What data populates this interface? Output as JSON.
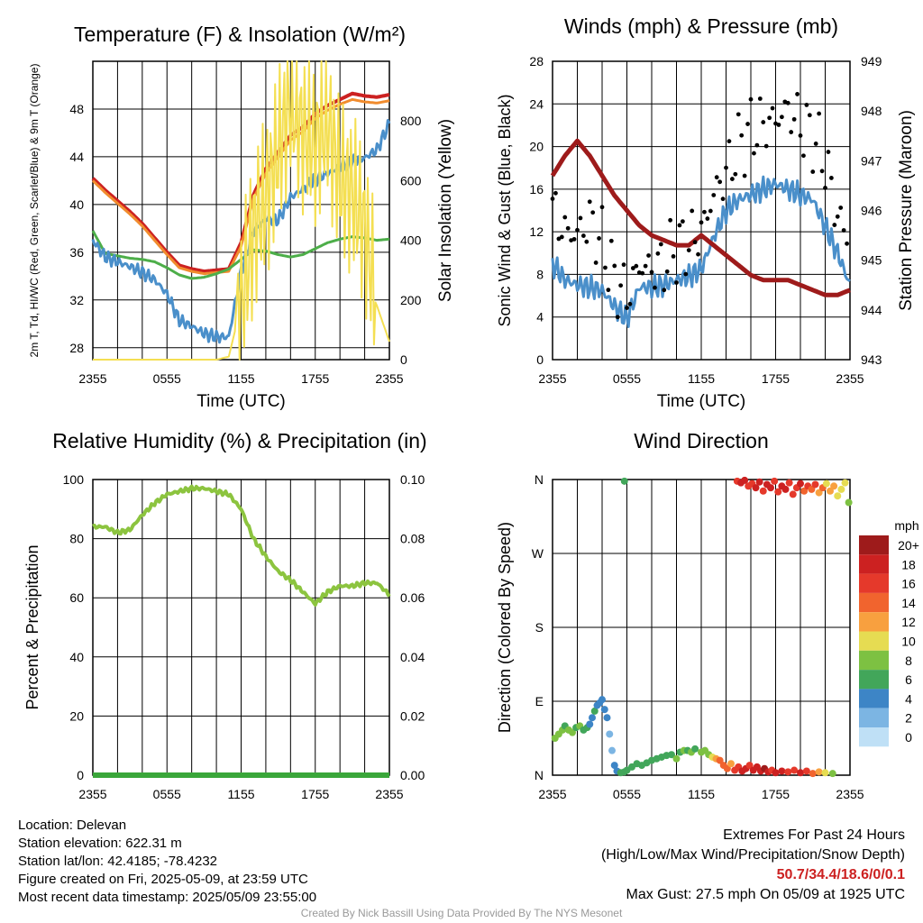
{
  "chart_data": [
    {
      "type": "line",
      "title": "Temperature (F) & Insolation (W/m²)",
      "xlabel": "Time (UTC)",
      "ylabel": "2m T, Td, HI/WC (Red, Green, Scarlet/Blue) & 9m T (Orange)",
      "y2label": "Solar Insolation (Yellow)",
      "x_ticks": [
        "2355",
        "0555",
        "1155",
        "1755",
        "2355"
      ],
      "y_ticks": [
        "28",
        "32",
        "36",
        "40",
        "44",
        "48"
      ],
      "y2_ticks": [
        "0",
        "200",
        "400",
        "600",
        "800"
      ],
      "ylim": [
        27,
        52
      ],
      "y2lim": [
        0,
        1000
      ],
      "x_hours": [
        0,
        1,
        2,
        3,
        4,
        5,
        6,
        7,
        8,
        9,
        10,
        11,
        12,
        13,
        14,
        15,
        16,
        17,
        18,
        19,
        20,
        21,
        22,
        23,
        24
      ],
      "series": [
        {
          "color": "#cc2121",
          "width": 4,
          "values": [
            42.2,
            41.2,
            40.3,
            39.4,
            38.4,
            37.2,
            36.0,
            34.9,
            34.6,
            34.4,
            34.5,
            34.6,
            36.8,
            40.8,
            43.0,
            44.4,
            45.8,
            46.5,
            47.6,
            48.3,
            48.8,
            49.3,
            49.1,
            49.0,
            49.2
          ]
        },
        {
          "color": "#f18c2e",
          "width": 3,
          "values": [
            42.0,
            41.0,
            40.1,
            39.2,
            38.2,
            37.0,
            35.8,
            34.7,
            34.4,
            34.2,
            34.3,
            34.4,
            36.5,
            40.5,
            42.6,
            44.0,
            45.4,
            46.1,
            47.2,
            47.9,
            48.4,
            48.8,
            48.6,
            48.5,
            48.7
          ]
        },
        {
          "color": "#4dae49",
          "width": 3,
          "values": [
            37.8,
            35.9,
            35.7,
            35.5,
            35.4,
            35.2,
            34.7,
            34.1,
            33.8,
            33.9,
            34.2,
            34.6,
            35.4,
            36.2,
            36.1,
            35.8,
            35.6,
            35.8,
            36.3,
            36.8,
            37.1,
            37.3,
            37.2,
            37.0,
            37.1
          ]
        },
        {
          "color": "#4a8fca",
          "width": 3,
          "values": [
            37.0,
            35.6,
            35.2,
            34.8,
            34.3,
            33.7,
            32.5,
            30.3,
            29.8,
            29.2,
            28.9,
            28.9,
            34.4,
            37.8,
            38.8,
            38.7,
            40.6,
            41.3,
            42.1,
            42.6,
            43.2,
            43.6,
            43.9,
            44.6,
            46.8
          ]
        },
        {
          "color": "#f4df52",
          "width": 2,
          "values": [
            0,
            0,
            0,
            0,
            0,
            0,
            0,
            0,
            0,
            0,
            0,
            10,
            180,
            430,
            540,
            700,
            870,
            760,
            720,
            800,
            600,
            560,
            440,
            180,
            60
          ]
        }
      ]
    },
    {
      "type": "line",
      "title": "Winds (mph) & Pressure (mb)",
      "xlabel": "Time (UTC)",
      "ylabel": "Sonic Wind & Gust (Blue, Black)",
      "y2label": "Station Pressure (Maroon)",
      "x_ticks": [
        "2355",
        "0555",
        "1155",
        "1755",
        "2355"
      ],
      "y_ticks": [
        "0",
        "4",
        "8",
        "12",
        "16",
        "20",
        "24",
        "28"
      ],
      "y2_ticks": [
        "943",
        "944",
        "945",
        "946",
        "947",
        "948",
        "949"
      ],
      "ylim": [
        0,
        28
      ],
      "y2lim": [
        943,
        949
      ],
      "x_hours": [
        0,
        1,
        2,
        3,
        4,
        5,
        6,
        7,
        8,
        9,
        10,
        11,
        12,
        13,
        14,
        15,
        16,
        17,
        18,
        19,
        20,
        21,
        22,
        23,
        24
      ],
      "series": [
        {
          "color": "#4a8fca",
          "width": 3,
          "values": [
            9.0,
            7.5,
            7.0,
            6.8,
            6.5,
            5.0,
            3.8,
            6.8,
            6.8,
            7.0,
            7.5,
            7.8,
            8.5,
            11.5,
            14.0,
            15.0,
            15.5,
            16.0,
            16.5,
            16.0,
            15.5,
            15.0,
            12.5,
            10.0,
            7.0
          ]
        },
        {
          "color": "#9e1b1b",
          "width": 5,
          "values": [
            946.7,
            947.1,
            947.4,
            947.1,
            946.7,
            946.3,
            946.0,
            945.7,
            945.5,
            945.4,
            945.3,
            945.3,
            945.5,
            945.3,
            945.1,
            944.9,
            944.7,
            944.6,
            944.6,
            944.6,
            944.5,
            944.4,
            944.3,
            944.3,
            944.4
          ]
        },
        {
          "color": "#000000",
          "width": 0,
          "values": [
            14.0,
            12.0,
            11.8,
            13.0,
            11.0,
            7.5,
            6.0,
            8.8,
            8.5,
            9.0,
            10.5,
            11.0,
            12.0,
            15.5,
            17.5,
            20.0,
            21.5,
            22.0,
            22.5,
            23.5,
            22.0,
            21.0,
            18.5,
            13.5,
            11.0
          ]
        }
      ]
    },
    {
      "type": "line",
      "title": "Relative Humidity (%) & Precipitation (in)",
      "xlabel": "",
      "ylabel": "Percent & Precipitation",
      "x_ticks": [
        "2355",
        "0555",
        "1155",
        "1755",
        "2355"
      ],
      "y_ticks": [
        "0",
        "20",
        "40",
        "60",
        "80",
        "100"
      ],
      "y2_ticks": [
        "0.00",
        "0.02",
        "0.04",
        "0.06",
        "0.08",
        "0.10"
      ],
      "ylim": [
        0,
        100
      ],
      "y2lim": [
        0,
        0.1
      ],
      "x_hours": [
        0,
        1,
        2,
        3,
        4,
        5,
        6,
        7,
        8,
        9,
        10,
        11,
        12,
        13,
        14,
        15,
        16,
        17,
        18,
        19,
        20,
        21,
        22,
        23,
        24
      ],
      "series": [
        {
          "color": "#8cc43f",
          "width": 4,
          "values": [
            84,
            84,
            82,
            83,
            88,
            92,
            95,
            96,
            97,
            97,
            96,
            95,
            90,
            80,
            74,
            69,
            66,
            62,
            58,
            62,
            64,
            64,
            65,
            65,
            61
          ]
        },
        {
          "color": "#3aa63a",
          "width": 6,
          "values": [
            0,
            0,
            0,
            0,
            0,
            0,
            0,
            0,
            0,
            0,
            0,
            0,
            0,
            0,
            0,
            0,
            0,
            0,
            0,
            0,
            0,
            0,
            0,
            0,
            0
          ]
        }
      ]
    },
    {
      "type": "scatter",
      "title": "Wind Direction",
      "ylabel": "Direction (Colored By Speed)",
      "x_ticks": [
        "2355",
        "0555",
        "1155",
        "1755",
        "2355"
      ],
      "y_ticks": [
        "N",
        "E",
        "S",
        "W",
        "N"
      ],
      "ylim": [
        0,
        360
      ],
      "legend": {
        "title": "mph",
        "labels": [
          "20+",
          "18",
          "16",
          "14",
          "12",
          "10",
          "8",
          "6",
          "4",
          "2",
          "0"
        ],
        "colors": [
          "#9e1b1b",
          "#cc2121",
          "#e5392b",
          "#f1642e",
          "#f8a03f",
          "#e6dc52",
          "#7dc142",
          "#42a65a",
          "#3d85c6",
          "#7cb5e3",
          "#bfe0f6"
        ]
      },
      "points": [
        [
          0.2,
          45,
          8
        ],
        [
          0.5,
          50,
          7
        ],
        [
          0.8,
          55,
          8
        ],
        [
          1.0,
          60,
          6
        ],
        [
          1.3,
          55,
          7
        ],
        [
          1.6,
          52,
          8
        ],
        [
          1.9,
          58,
          6
        ],
        [
          2.2,
          60,
          7
        ],
        [
          2.5,
          55,
          6
        ],
        [
          2.8,
          58,
          5
        ],
        [
          3.0,
          62,
          4
        ],
        [
          3.2,
          70,
          4
        ],
        [
          3.4,
          78,
          5
        ],
        [
          3.6,
          85,
          4
        ],
        [
          3.8,
          88,
          3
        ],
        [
          4.0,
          92,
          4
        ],
        [
          4.2,
          80,
          3
        ],
        [
          4.4,
          70,
          3
        ],
        [
          4.6,
          50,
          2
        ],
        [
          4.8,
          30,
          2
        ],
        [
          5.0,
          12,
          3
        ],
        [
          5.2,
          5,
          4
        ],
        [
          5.5,
          3,
          5
        ],
        [
          5.8,
          4,
          5
        ],
        [
          6.0,
          6,
          5
        ],
        [
          6.4,
          10,
          5
        ],
        [
          6.8,
          14,
          6
        ],
        [
          7.2,
          12,
          6
        ],
        [
          7.6,
          15,
          5
        ],
        [
          8.0,
          18,
          6
        ],
        [
          8.4,
          20,
          6
        ],
        [
          8.8,
          22,
          6
        ],
        [
          9.2,
          24,
          6
        ],
        [
          9.6,
          25,
          6
        ],
        [
          10.0,
          20,
          7
        ],
        [
          10.3,
          28,
          6
        ],
        [
          10.6,
          30,
          7
        ],
        [
          10.9,
          30,
          6
        ],
        [
          11.2,
          28,
          7
        ],
        [
          11.5,
          32,
          6
        ],
        [
          12.0,
          28,
          7
        ],
        [
          12.3,
          30,
          8
        ],
        [
          12.6,
          25,
          8
        ],
        [
          12.9,
          22,
          10
        ],
        [
          13.2,
          20,
          12
        ],
        [
          13.5,
          18,
          14
        ],
        [
          13.8,
          12,
          13
        ],
        [
          14.1,
          8,
          14
        ],
        [
          14.4,
          14,
          11
        ],
        [
          14.7,
          6,
          15
        ],
        [
          15.0,
          10,
          16
        ],
        [
          15.3,
          5,
          17
        ],
        [
          15.6,
          8,
          18
        ],
        [
          15.9,
          12,
          16
        ],
        [
          16.2,
          6,
          18
        ],
        [
          16.5,
          10,
          17
        ],
        [
          16.8,
          5,
          18
        ],
        [
          17.1,
          8,
          20
        ],
        [
          17.4,
          4,
          18
        ],
        [
          17.7,
          6,
          16
        ],
        [
          18.0,
          3,
          17
        ],
        [
          18.5,
          5,
          18
        ],
        [
          19.0,
          4,
          16
        ],
        [
          19.5,
          6,
          15
        ],
        [
          20.0,
          3,
          18
        ],
        [
          20.5,
          5,
          16
        ],
        [
          21.0,
          2,
          14
        ],
        [
          21.5,
          4,
          12
        ],
        [
          22.0,
          3,
          10
        ],
        [
          22.6,
          2,
          8
        ],
        [
          5.8,
          358,
          6
        ],
        [
          14.9,
          358,
          16
        ],
        [
          15.2,
          356,
          17
        ],
        [
          15.5,
          359,
          18
        ],
        [
          15.8,
          352,
          16
        ],
        [
          16.1,
          355,
          15
        ],
        [
          16.4,
          350,
          18
        ],
        [
          16.7,
          357,
          17
        ],
        [
          17.0,
          346,
          16
        ],
        [
          17.3,
          354,
          18
        ],
        [
          17.6,
          350,
          17
        ],
        [
          17.9,
          358,
          16
        ],
        [
          18.2,
          345,
          15
        ],
        [
          18.5,
          352,
          18
        ],
        [
          18.8,
          348,
          17
        ],
        [
          19.1,
          356,
          16
        ],
        [
          19.4,
          342,
          15
        ],
        [
          19.7,
          350,
          16
        ],
        [
          20.0,
          355,
          17
        ],
        [
          20.3,
          346,
          14
        ],
        [
          20.6,
          352,
          16
        ],
        [
          20.9,
          348,
          13
        ],
        [
          21.2,
          354,
          15
        ],
        [
          21.5,
          344,
          12
        ],
        [
          21.8,
          350,
          14
        ],
        [
          22.1,
          355,
          10
        ],
        [
          22.4,
          346,
          12
        ],
        [
          22.7,
          352,
          11
        ],
        [
          23.0,
          340,
          9
        ],
        [
          23.3,
          348,
          10
        ],
        [
          23.6,
          356,
          9
        ],
        [
          23.9,
          332,
          7
        ]
      ]
    }
  ],
  "footer": {
    "location": "Location: Delevan",
    "elevation": "Station elevation: 622.31 m",
    "latlon": "Station lat/lon: 42.4185; -78.4232",
    "created": "Figure created on Fri, 2025-05-09, at 23:59 UTC",
    "recent": "Most recent data timestamp: 2025/05/09 23:55:00",
    "extremes_title": "Extremes For Past 24 Hours",
    "extremes_sub": "(High/Low/Max Wind/Precipitation/Snow Depth)",
    "extremes_values": "50.7/34.4/18.6/0/0.1",
    "max_gust": "Max Gust: 27.5 mph On 05/09 at 1925 UTC",
    "credit": "Created By Nick Bassill Using Data Provided By The NYS Mesonet"
  }
}
